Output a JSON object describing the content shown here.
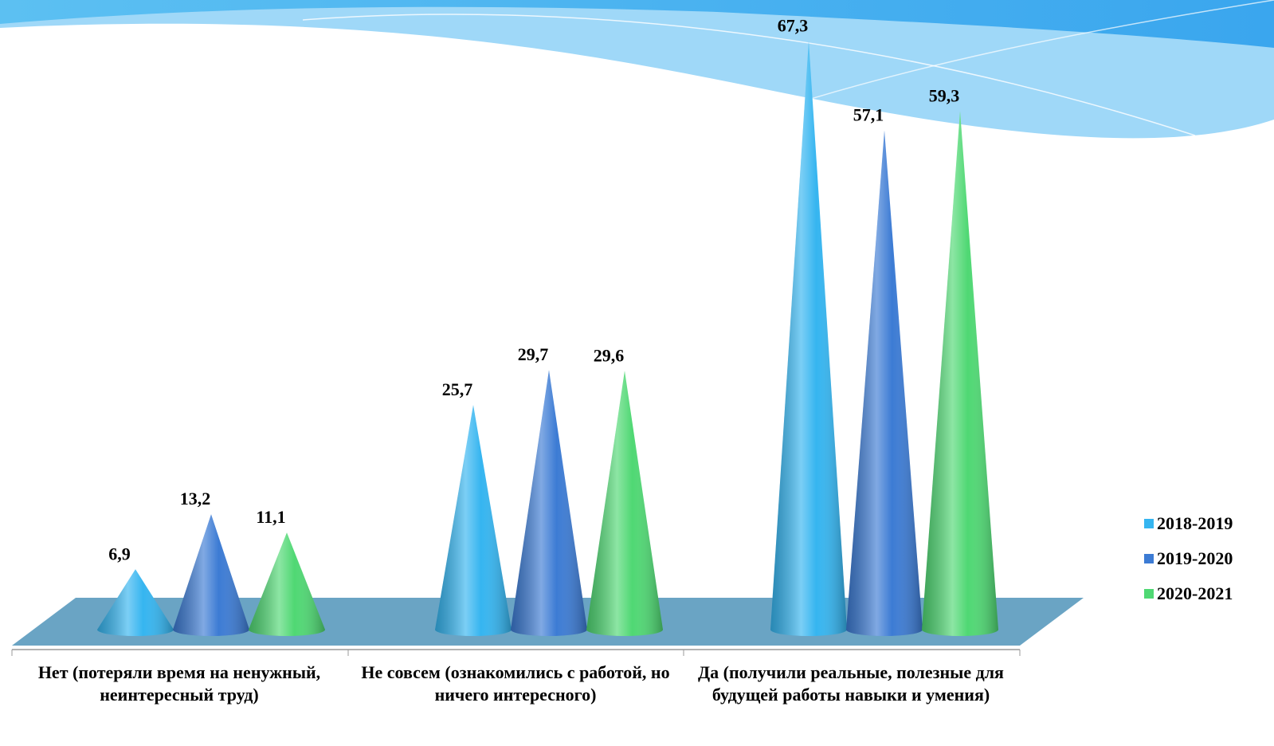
{
  "chart_data": {
    "type": "cone",
    "categories": [
      "Нет (потеряли время на ненужный, неинтересный труд)",
      "Не совсем (ознакомились с работой, но ничего интересного)",
      "Да (получили реальные, полезные для будущей работы навыки и умения)"
    ],
    "series": [
      {
        "name": "2018-2019",
        "color": "#35b5f0",
        "values": [
          6.9,
          25.7,
          67.3
        ],
        "value_labels": [
          "6,9",
          "25,7",
          "67,3"
        ]
      },
      {
        "name": "2019-2020",
        "color": "#3c7bd4",
        "values": [
          13.2,
          29.7,
          57.1
        ],
        "value_labels": [
          "13,2",
          "29,7",
          "57,1"
        ]
      },
      {
        "name": "2020-2021",
        "color": "#4fd873",
        "values": [
          11.1,
          29.6,
          59.3
        ],
        "value_labels": [
          "11,1",
          "29,6",
          "59,3"
        ]
      }
    ]
  }
}
